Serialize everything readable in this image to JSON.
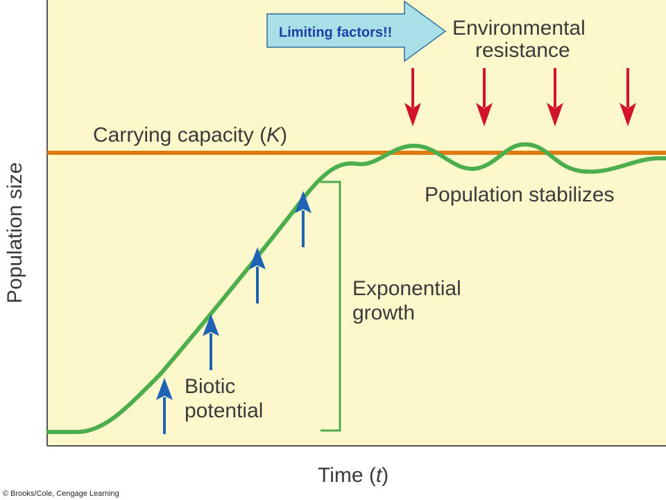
{
  "title_callout": "Limiting factors!!",
  "labels": {
    "environmental_line1": "Environmental",
    "environmental_line2": "resistance",
    "carrying_capacity": "Carrying capacity (",
    "carrying_capacity_k": "K",
    "carrying_capacity_end": ")",
    "population_stabilizes": "Population stabilizes",
    "exponential_line1": "Exponential",
    "exponential_line2": "growth",
    "biotic_line1": "Biotic",
    "biotic_line2": "potential",
    "y_axis": "Population size",
    "x_axis": "Time (",
    "x_axis_t": "t",
    "x_axis_end": ")"
  },
  "credit": "© Brooks/Cole, Cengage Learning",
  "colors": {
    "plot_background": "#fdf7cc",
    "curve": "#4cae4c",
    "carrying_capacity_line": "#e07b12",
    "resistance_arrows": "#d3132b",
    "potential_arrows": "#1e63b5",
    "bracket": "#4cae4c",
    "callout_fill": "#a9dfe6"
  }
}
